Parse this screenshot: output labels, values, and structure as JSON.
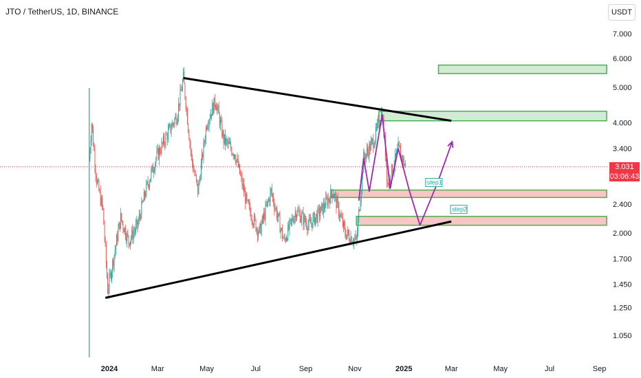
{
  "header": {
    "symbol": "JTO / TetherUS, 1D, BINANCE"
  },
  "currency_button": {
    "label": "USDT"
  },
  "price_tag": {
    "price": "3.031",
    "countdown": "03:06:43"
  },
  "colors": {
    "up": "#26a69a",
    "down": "#ef5350",
    "trendline": "#000000",
    "projection": "#9c27b0",
    "zone_green": "#4caf50",
    "zone_pink": "#f8c6c6",
    "current": "#f23645"
  },
  "chart_data": {
    "type": "candlestick",
    "title": "JTO / TetherUS, 1D, BINANCE",
    "y_scale": "log",
    "y_ticks": [
      7.0,
      6.0,
      5.0,
      4.0,
      3.4,
      3.031,
      2.4,
      2.0,
      1.7,
      1.45,
      1.25,
      1.05
    ],
    "y_tick_labels": [
      "7.000",
      "6.000",
      "5.000",
      "4.000",
      "3.400",
      "2.400",
      "2.000",
      "1.700",
      "1.450",
      "1.250",
      "1.050"
    ],
    "x_ticks": [
      "2024",
      "Mar",
      "May",
      "Jul",
      "Sep",
      "Nov",
      "2025",
      "Mar",
      "May",
      "Jul",
      "Sep"
    ],
    "current_price": 3.031,
    "price_path": [
      [
        "2023-12-07",
        3.2
      ],
      [
        "2023-12-10",
        4.0
      ],
      [
        "2023-12-16",
        2.8
      ],
      [
        "2023-12-24",
        2.3
      ],
      [
        "2023-12-30",
        1.4
      ],
      [
        "2024-01-06",
        1.7
      ],
      [
        "2024-01-15",
        2.2
      ],
      [
        "2024-01-25",
        1.9
      ],
      [
        "2024-02-05",
        2.1
      ],
      [
        "2024-02-15",
        2.6
      ],
      [
        "2024-02-28",
        3.2
      ],
      [
        "2024-03-10",
        3.6
      ],
      [
        "2024-03-25",
        4.2
      ],
      [
        "2024-04-02",
        5.3
      ],
      [
        "2024-04-12",
        3.2
      ],
      [
        "2024-04-20",
        2.6
      ],
      [
        "2024-05-01",
        4.0
      ],
      [
        "2024-05-12",
        4.6
      ],
      [
        "2024-05-22",
        3.6
      ],
      [
        "2024-06-05",
        3.3
      ],
      [
        "2024-06-20",
        2.4
      ],
      [
        "2024-07-05",
        2.0
      ],
      [
        "2024-07-20",
        2.6
      ],
      [
        "2024-08-05",
        1.9
      ],
      [
        "2024-08-20",
        2.3
      ],
      [
        "2024-09-05",
        2.1
      ],
      [
        "2024-09-20",
        2.3
      ],
      [
        "2024-10-05",
        2.6
      ],
      [
        "2024-10-20",
        2.0
      ],
      [
        "2024-11-03",
        1.9
      ],
      [
        "2024-11-12",
        3.2
      ],
      [
        "2024-11-25",
        3.6
      ],
      [
        "2024-12-05",
        4.3
      ],
      [
        "2024-12-12",
        2.7
      ],
      [
        "2024-12-25",
        3.4
      ],
      [
        "2025-01-03",
        3.03
      ]
    ],
    "drawings": {
      "upper_trendline": [
        [
          "2024-04-02",
          5.3
        ],
        [
          "2025-03-01",
          4.05
        ]
      ],
      "lower_trendline": [
        [
          "2023-12-27",
          1.33
        ],
        [
          "2025-03-01",
          2.15
        ]
      ],
      "projection_path": [
        [
          "2024-11-06",
          2.45
        ],
        [
          "2024-11-12",
          3.2
        ],
        [
          "2024-11-19",
          2.6
        ],
        [
          "2024-12-05",
          4.2
        ],
        [
          "2024-12-15",
          2.65
        ],
        [
          "2024-12-25",
          3.4
        ],
        [
          "2025-01-08",
          2.6
        ],
        [
          "2025-01-21",
          2.1
        ],
        [
          "2025-02-12",
          2.75
        ],
        [
          "2025-03-02",
          3.55
        ]
      ],
      "zones": [
        {
          "type": "green",
          "from": "2025-02-13",
          "to": "2025-10-05",
          "top": 5.75,
          "bottom": 5.45
        },
        {
          "type": "green",
          "from": "2024-12-01",
          "to": "2025-10-05",
          "top": 4.3,
          "bottom": 4.05
        },
        {
          "type": "pink",
          "from": "2024-10-03",
          "to": "2025-10-05",
          "top": 2.62,
          "bottom": 2.5
        },
        {
          "type": "pink",
          "from": "2024-11-03",
          "to": "2025-10-05",
          "top": 2.22,
          "bottom": 2.1
        }
      ],
      "labels": [
        {
          "text": "step1",
          "at": [
            "2025-01-28",
            2.7
          ]
        },
        {
          "text": "step2",
          "at": [
            "2025-02-28",
            2.28
          ]
        }
      ]
    }
  }
}
